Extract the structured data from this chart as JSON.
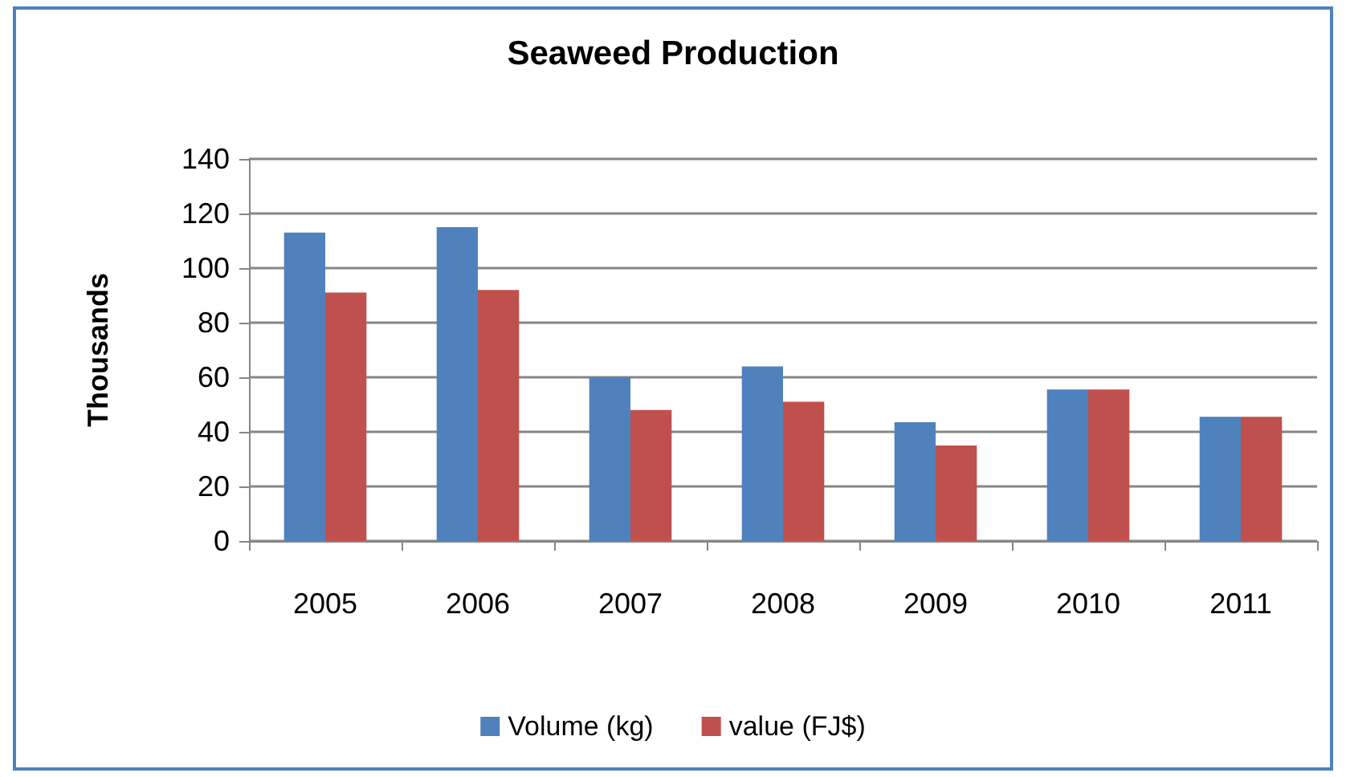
{
  "chart_data": {
    "type": "bar",
    "title": "Seaweed Production",
    "ylabel": "Thousands",
    "categories": [
      "2005",
      "2006",
      "2007",
      "2008",
      "2009",
      "2010",
      "2011"
    ],
    "series": [
      {
        "name": "Volume (kg)",
        "color": "#4f81bd",
        "values": [
          113,
          115,
          60,
          64,
          43.5,
          55.5,
          45.5
        ]
      },
      {
        "name": "value (FJ$)",
        "color": "#c0504d",
        "values": [
          91,
          92,
          48,
          51,
          35,
          55.5,
          45.5
        ]
      }
    ],
    "ylim": [
      0,
      140
    ],
    "yticks": [
      0,
      20,
      40,
      60,
      80,
      100,
      120,
      140
    ],
    "grid": "y",
    "legend": "bottom"
  }
}
